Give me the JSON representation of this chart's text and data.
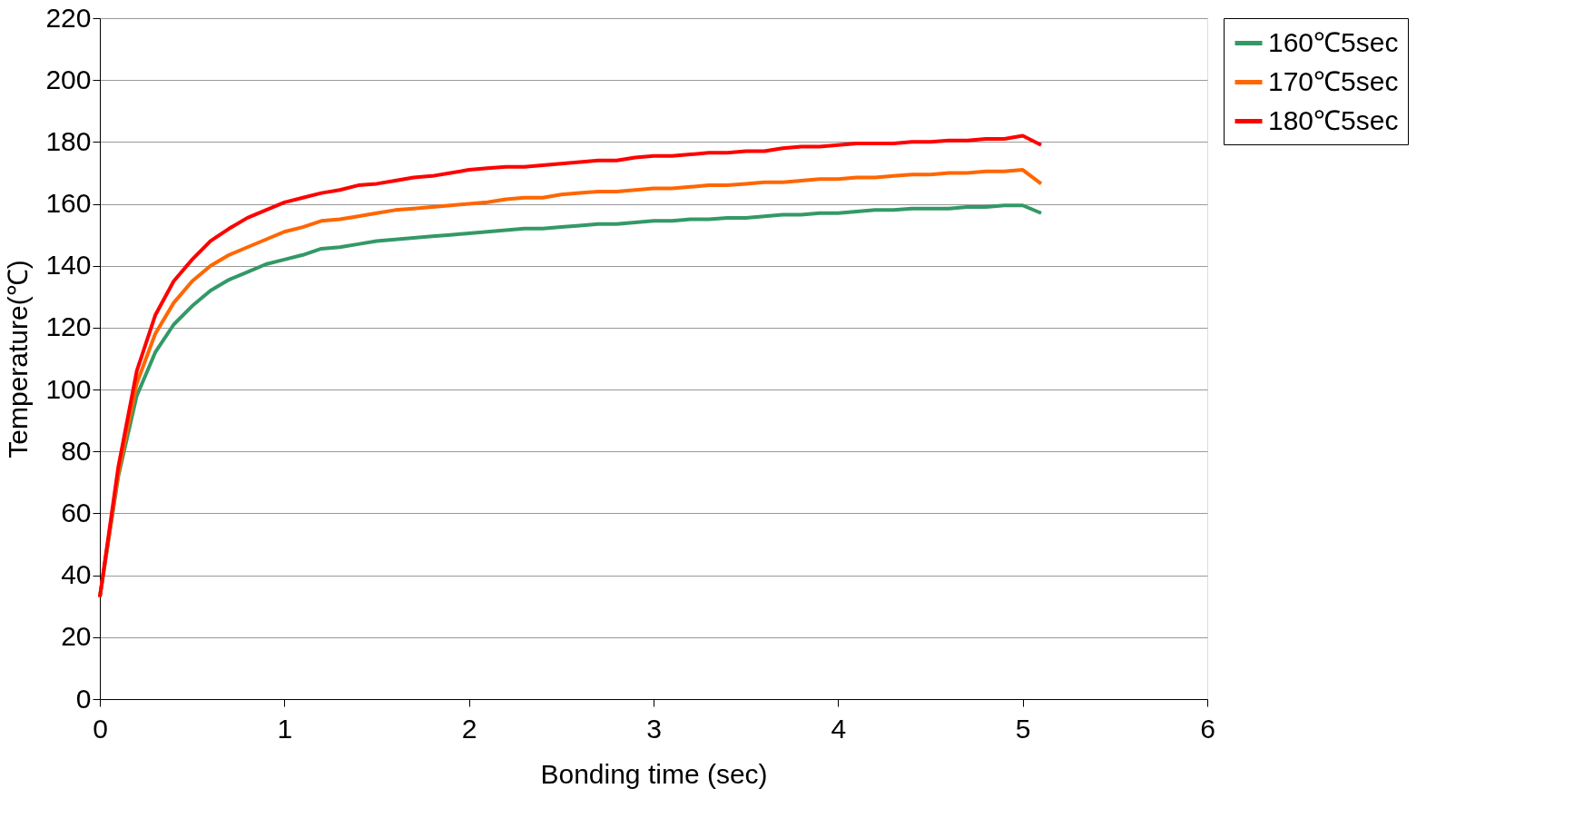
{
  "chart_data": {
    "type": "line",
    "xlabel": "Bonding time (sec)",
    "ylabel": "Temperature(℃)",
    "x": [
      0,
      0.1,
      0.2,
      0.3,
      0.4,
      0.5,
      0.6,
      0.7,
      0.8,
      0.9,
      1.0,
      1.1,
      1.2,
      1.3,
      1.4,
      1.5,
      1.6,
      1.7,
      1.8,
      1.9,
      2.0,
      2.1,
      2.2,
      2.3,
      2.4,
      2.5,
      2.6,
      2.7,
      2.8,
      2.9,
      3.0,
      3.1,
      3.2,
      3.3,
      3.4,
      3.5,
      3.6,
      3.7,
      3.8,
      3.9,
      4.0,
      4.1,
      4.2,
      4.3,
      4.4,
      4.5,
      4.6,
      4.7,
      4.8,
      4.9,
      5.0,
      5.1
    ],
    "series": [
      {
        "name": "160℃5sec",
        "color": "#339966",
        "values": [
          33,
          72,
          98,
          112,
          121,
          127,
          132,
          135.5,
          138,
          140.5,
          142,
          143.5,
          145.5,
          146,
          147,
          148,
          148.5,
          149,
          149.5,
          150,
          150.5,
          151,
          151.5,
          152,
          152,
          152.5,
          153,
          153.5,
          153.5,
          154,
          154.5,
          154.5,
          155,
          155,
          155.5,
          155.5,
          156,
          156.5,
          156.5,
          157,
          157,
          157.5,
          158,
          158,
          158.5,
          158.5,
          158.5,
          159,
          159,
          159.5,
          159.5,
          157
        ]
      },
      {
        "name": "170℃5sec",
        "color": "#ff6600",
        "values": [
          33,
          73,
          102,
          118,
          128,
          135,
          140,
          143.5,
          146,
          148.5,
          151,
          152.5,
          154.5,
          155,
          156,
          157,
          158,
          158.5,
          159,
          159.5,
          160,
          160.5,
          161.5,
          162,
          162,
          163,
          163.5,
          164,
          164,
          164.5,
          165,
          165,
          165.5,
          166,
          166,
          166.5,
          167,
          167,
          167.5,
          168,
          168,
          168.5,
          168.5,
          169,
          169.5,
          169.5,
          170,
          170,
          170.5,
          170.5,
          171,
          166.5
        ]
      },
      {
        "name": "180℃5sec",
        "color": "#ff0000",
        "values": [
          33,
          75,
          106,
          124,
          135,
          142,
          148,
          152,
          155.5,
          158,
          160.5,
          162,
          163.5,
          164.5,
          166,
          166.5,
          167.5,
          168.5,
          169,
          170,
          171,
          171.5,
          172,
          172,
          172.5,
          173,
          173.5,
          174,
          174,
          175,
          175.5,
          175.5,
          176,
          176.5,
          176.5,
          177,
          177,
          178,
          178.5,
          178.5,
          179,
          179.5,
          179.5,
          179.5,
          180,
          180,
          180.5,
          180.5,
          181,
          181,
          182,
          179
        ]
      }
    ],
    "xlim": [
      0,
      6
    ],
    "xticks": [
      0,
      1,
      2,
      3,
      4,
      5,
      6
    ],
    "ylim": [
      0,
      220
    ],
    "yticks": [
      0,
      20,
      40,
      60,
      80,
      100,
      120,
      140,
      160,
      180,
      200,
      220
    ],
    "grid": "y",
    "legend": "right",
    "marker": "none",
    "line_style": "solid"
  }
}
